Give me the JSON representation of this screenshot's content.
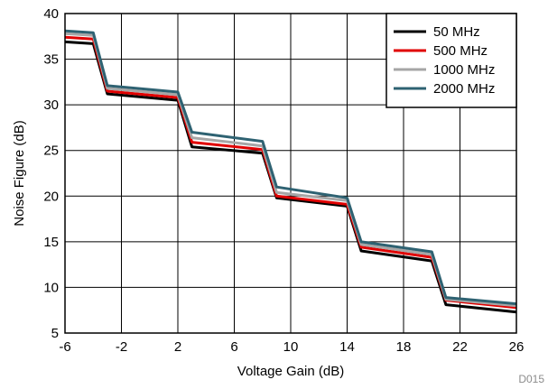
{
  "chart_data": {
    "type": "line",
    "title": "",
    "xlabel": "Voltage Gain (dB)",
    "ylabel": "Noise Figure (dB)",
    "xlim": [
      -6,
      26
    ],
    "ylim": [
      5,
      40
    ],
    "xticks": [
      -6,
      -2,
      2,
      6,
      10,
      14,
      18,
      22,
      26
    ],
    "yticks": [
      5,
      10,
      15,
      20,
      25,
      30,
      35,
      40
    ],
    "grid": true,
    "legend_position": "top-right",
    "credit": "D015",
    "series": [
      {
        "name": "50 MHz",
        "color": "#000000",
        "x": [
          -6,
          -4,
          -3,
          2,
          3,
          8,
          9,
          14,
          15,
          20,
          21,
          26
        ],
        "y": [
          36.9,
          36.7,
          31.2,
          30.5,
          25.4,
          24.7,
          19.8,
          18.9,
          14.0,
          12.9,
          8.1,
          7.3
        ]
      },
      {
        "name": "500 MHz",
        "color": "#e00000",
        "x": [
          -6,
          -4,
          -3,
          2,
          3,
          8,
          9,
          14,
          15,
          20,
          21,
          26
        ],
        "y": [
          37.4,
          37.2,
          31.5,
          30.8,
          25.9,
          25.1,
          20.0,
          19.1,
          14.4,
          13.3,
          8.6,
          7.8
        ]
      },
      {
        "name": "1000 MHz",
        "color": "#a6a6a6",
        "x": [
          -6,
          -4,
          -3,
          2,
          3,
          8,
          9,
          14,
          15,
          20,
          21,
          26
        ],
        "y": [
          37.8,
          37.6,
          31.8,
          31.1,
          26.4,
          25.5,
          20.4,
          19.5,
          14.7,
          13.6,
          8.7,
          8.0
        ]
      },
      {
        "name": "2000 MHz",
        "color": "#2e6272",
        "x": [
          -6,
          -4,
          -3,
          2,
          3,
          8,
          9,
          14,
          15,
          20,
          21,
          26
        ],
        "y": [
          38.1,
          37.9,
          32.1,
          31.4,
          27.0,
          26.0,
          21.0,
          19.8,
          15.0,
          13.9,
          8.9,
          8.2
        ]
      }
    ]
  }
}
